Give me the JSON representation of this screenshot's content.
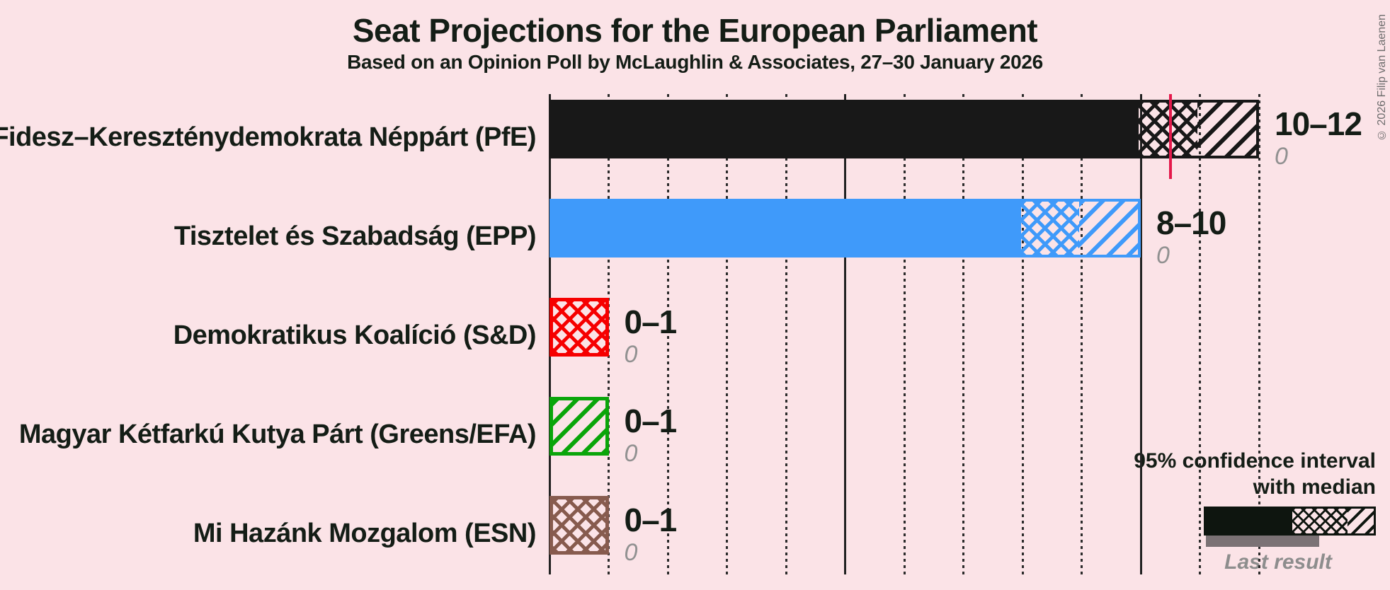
{
  "title": "Seat Projections for the European Parliament",
  "subtitle": "Based on an Opinion Poll by McLaughlin & Associates, 27–30 January 2026",
  "copyright": "© 2026 Filip van Laenen",
  "legend": {
    "ci_line1": "95% confidence interval",
    "ci_line2": "with median",
    "last_result_label": "Last result",
    "sample_color": "#0e150f",
    "last_result_bar_color": "#7b7275"
  },
  "colors": {
    "background": "#fbe3e7",
    "text": "#141d16",
    "gridline": "#2b2b2b",
    "median_line": "#e4194b",
    "muted_gray": "#919191"
  },
  "chart_data": {
    "type": "bar",
    "orientation": "horizontal",
    "title": "Seat Projections for the European Parliament",
    "subtitle": "Based on an Opinion Poll by McLaughlin & Associates, 27–30 January 2026",
    "unit": "seats",
    "x_axis": {
      "min": 0,
      "max": 12,
      "tick_interval": 1,
      "solid_gridlines": [
        5,
        10
      ],
      "dotted_gridlines": [
        1,
        2,
        3,
        4,
        6,
        7,
        8,
        9,
        11,
        12
      ],
      "grid": true
    },
    "legend_position": "bottom-right",
    "series": [
      {
        "label": "Fidesz–Kereszténydemokrata Néppárt (PfE)",
        "range_label": "10–12",
        "last_result": "0",
        "ci_low": 10,
        "ci_high": 12,
        "median": 10.5,
        "color": "#181818",
        "segments": [
          {
            "type": "solid",
            "from": 0,
            "to": 10
          },
          {
            "type": "cross",
            "from": 10,
            "to": 11
          },
          {
            "type": "diag",
            "from": 11,
            "to": 12
          }
        ]
      },
      {
        "label": "Tisztelet és Szabadság (EPP)",
        "range_label": "8–10",
        "last_result": "0",
        "ci_low": 8,
        "ci_high": 10,
        "median": null,
        "color": "#3f9afa",
        "segments": [
          {
            "type": "solid",
            "from": 0,
            "to": 8
          },
          {
            "type": "cross",
            "from": 8,
            "to": 9
          },
          {
            "type": "diag",
            "from": 9,
            "to": 10
          }
        ]
      },
      {
        "label": "Demokratikus Koalíció (S&D)",
        "range_label": "0–1",
        "last_result": "0",
        "ci_low": 0,
        "ci_high": 1,
        "median": null,
        "color": "#f60000",
        "segments": [
          {
            "type": "cross",
            "from": 0,
            "to": 1
          }
        ]
      },
      {
        "label": "Magyar Kétfarkú Kutya Párt (Greens/EFA)",
        "range_label": "0–1",
        "last_result": "0",
        "ci_low": 0,
        "ci_high": 1,
        "median": null,
        "color": "#0aa50a",
        "segments": [
          {
            "type": "diag",
            "from": 0,
            "to": 1
          }
        ]
      },
      {
        "label": "Mi Hazánk Mozgalom (ESN)",
        "range_label": "0–1",
        "last_result": "0",
        "ci_low": 0,
        "ci_high": 1,
        "median": null,
        "color": "#875b4e",
        "segments": [
          {
            "type": "cross",
            "from": 0,
            "to": 1
          }
        ]
      }
    ]
  }
}
